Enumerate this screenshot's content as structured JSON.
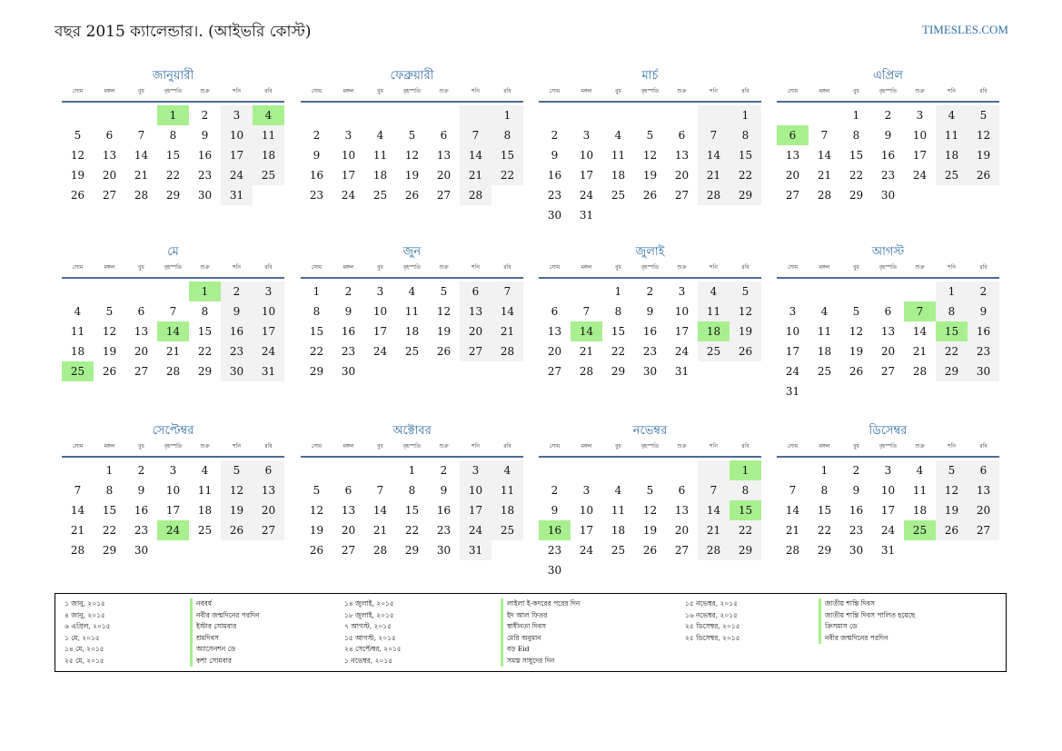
{
  "header": {
    "title": "বছর 2015 ক্যালেন্ডার।. (আইভরি কোস্ট)",
    "site": "TIMESLES.COM"
  },
  "weekdays": [
    "সোম",
    "মঙ্গল",
    "বুধ",
    "বৃহস্পতি",
    "শুক্র",
    "শনি",
    "রবি"
  ],
  "months": [
    {
      "name": "জানুয়ারী",
      "start": 3,
      "days": 31,
      "holidays": [
        1,
        4
      ]
    },
    {
      "name": "ফেব্রুয়ারী",
      "start": 6,
      "days": 28,
      "holidays": []
    },
    {
      "name": "মার্চ",
      "start": 6,
      "days": 31,
      "holidays": []
    },
    {
      "name": "এপ্রিল",
      "start": 2,
      "days": 30,
      "holidays": [
        6
      ]
    },
    {
      "name": "মে",
      "start": 4,
      "days": 31,
      "holidays": [
        1,
        14,
        25
      ]
    },
    {
      "name": "জুন",
      "start": 0,
      "days": 30,
      "holidays": []
    },
    {
      "name": "জুলাই",
      "start": 2,
      "days": 31,
      "holidays": [
        14,
        18
      ]
    },
    {
      "name": "আগস্ট",
      "start": 5,
      "days": 31,
      "holidays": [
        7,
        15
      ]
    },
    {
      "name": "সেপ্টেম্বর",
      "start": 1,
      "days": 30,
      "holidays": [
        24
      ]
    },
    {
      "name": "অক্টোবর",
      "start": 3,
      "days": 31,
      "holidays": []
    },
    {
      "name": "নভেম্বর",
      "start": 6,
      "days": 30,
      "holidays": [
        1,
        15,
        16
      ]
    },
    {
      "name": "ডিসেম্বর",
      "start": 1,
      "days": 31,
      "holidays": [
        25
      ]
    }
  ],
  "legend": [
    {
      "dates": [
        "১ জানু, ২০১৫",
        "৪ জানু, ২০১৫",
        "৬ এপ্রিল, ২০১৫",
        "১ মে, ২০১৫",
        "১৪ মে, ২০১৫",
        "২৫ মে, ২০১৫"
      ],
      "names": [
        "নববর্ষ",
        "নবীর জন্মদিনের পরদিন",
        "ইস্টার সোমবার",
        "শ্রমদিবস",
        "অ্যাসেনশন ডে",
        "কশা সোমবার"
      ]
    },
    {
      "dates": [
        "১৪ জুলাই, ২০১৫",
        "১৮ জুলাই, ২০১৫",
        "৭ আগস্ট, ২০১৫",
        "১৫ আগস্ট, ২০১৫",
        "২৪ সেপ্টেম্বর, ২০১৫",
        "১ নভেম্বর, ২০১৫"
      ],
      "names": [
        "লাইলা ই-কদরের পরের দিন",
        "ইদ আল ফিতর",
        "স্বাধীনতা দিবস",
        "মেরি অনুমান",
        "বড় Eid",
        "সমস্ত সাধুদের দিন"
      ]
    },
    {
      "dates": [
        "১৫ নভেম্বর, ২০১৫",
        "১৬ নভেম্বর, ২০১৫",
        "২৫ ডিসেম্বর, ২০১৫",
        "২৫ ডিসেম্বর, ২০১৫"
      ],
      "names": [
        "জাতীয় শান্তি দিবস",
        "জাতীয় শান্তি দিবস পালিত হয়েছে",
        "ক্রিসমাস ডে",
        "নবীর জন্মদিনের পরদিন"
      ]
    }
  ]
}
